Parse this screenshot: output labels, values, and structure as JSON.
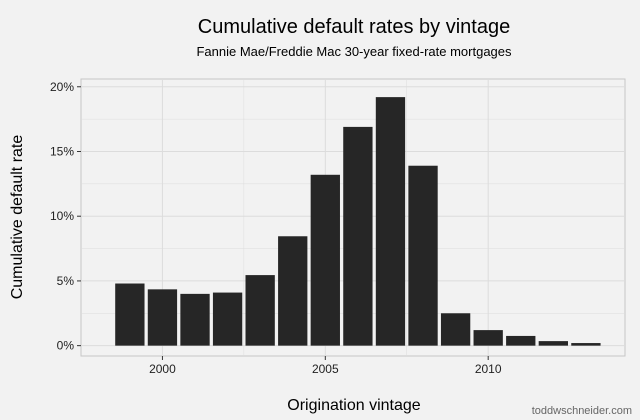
{
  "chart_data": {
    "type": "bar",
    "title": "Cumulative default rates by vintage",
    "subtitle": "Fannie Mae/Freddie Mac 30-year fixed-rate mortgages",
    "xlabel": "Origination vintage",
    "ylabel": "Cumulative default rate",
    "x": [
      1999,
      2000,
      2001,
      2002,
      2003,
      2004,
      2005,
      2006,
      2007,
      2008,
      2009,
      2010,
      2011,
      2012,
      2013
    ],
    "values": [
      4.8,
      4.35,
      4.0,
      4.1,
      5.45,
      8.45,
      13.2,
      16.9,
      19.2,
      13.9,
      2.5,
      1.2,
      0.75,
      0.35,
      0.2
    ],
    "xlim": [
      1997.5,
      2014.2
    ],
    "ylim": [
      -0.8,
      20.6
    ],
    "x_ticks": [
      2000,
      2005,
      2010
    ],
    "x_tick_labels": [
      "2000",
      "2005",
      "2010"
    ],
    "y_ticks": [
      0,
      5,
      10,
      15,
      20
    ],
    "y_tick_labels": [
      "0%",
      "5%",
      "10%",
      "15%",
      "20%"
    ],
    "grid": true,
    "bar_color": "#262626",
    "panel_color": "#f2f2f2",
    "grid_color": "#dcdcdc"
  },
  "credit": "toddwschneider.com"
}
